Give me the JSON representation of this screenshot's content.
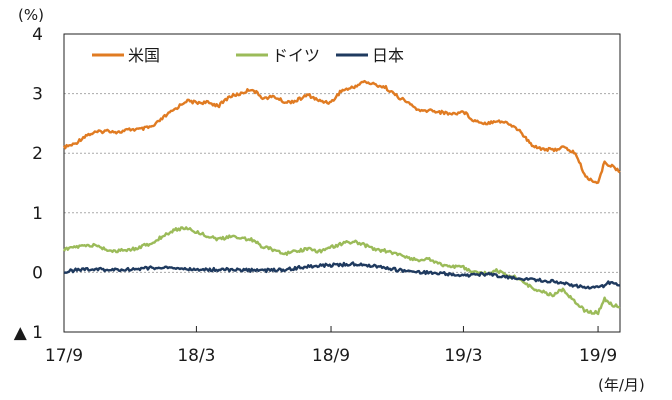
{
  "chart_data": {
    "type": "line",
    "title": "",
    "xlabel": "",
    "ylabel": "",
    "y_unit": "(%)",
    "x_unit": "(年/月)",
    "ylim": [
      -1,
      4
    ],
    "xlim": [
      "2017-09",
      "2019-10"
    ],
    "yticks": [
      {
        "value": 4,
        "label": "4"
      },
      {
        "value": 3,
        "label": "3"
      },
      {
        "value": 2,
        "label": "2"
      },
      {
        "value": 1,
        "label": "1"
      },
      {
        "value": 0,
        "label": "0"
      },
      {
        "value": -1,
        "label": "▲ 1"
      }
    ],
    "xticks": [
      {
        "value": "2017-09",
        "label": "17/9"
      },
      {
        "value": "2018-03",
        "label": "18/3"
      },
      {
        "value": "2018-09",
        "label": "18/9"
      },
      {
        "value": "2019-03",
        "label": "19/3"
      },
      {
        "value": "2019-09",
        "label": "19/9"
      }
    ],
    "grid": "horizontal dotted",
    "legend_position": "top-left",
    "series": [
      {
        "name": "米国",
        "color": "#E07B22",
        "points": [
          [
            "2017-09-01",
            2.1
          ],
          [
            "2017-09-15",
            2.15
          ],
          [
            "2017-10-01",
            2.3
          ],
          [
            "2017-10-15",
            2.35
          ],
          [
            "2017-11-01",
            2.38
          ],
          [
            "2017-11-15",
            2.35
          ],
          [
            "2017-12-01",
            2.4
          ],
          [
            "2017-12-15",
            2.4
          ],
          [
            "2018-01-01",
            2.45
          ],
          [
            "2018-01-15",
            2.6
          ],
          [
            "2018-02-01",
            2.75
          ],
          [
            "2018-02-15",
            2.88
          ],
          [
            "2018-03-01",
            2.85
          ],
          [
            "2018-03-15",
            2.85
          ],
          [
            "2018-04-01",
            2.8
          ],
          [
            "2018-04-15",
            2.95
          ],
          [
            "2018-05-01",
            3.0
          ],
          [
            "2018-05-15",
            3.08
          ],
          [
            "2018-06-01",
            2.92
          ],
          [
            "2018-06-15",
            2.95
          ],
          [
            "2018-07-01",
            2.85
          ],
          [
            "2018-07-15",
            2.88
          ],
          [
            "2018-08-01",
            2.98
          ],
          [
            "2018-08-15",
            2.88
          ],
          [
            "2018-09-01",
            2.85
          ],
          [
            "2018-09-15",
            3.05
          ],
          [
            "2018-10-01",
            3.1
          ],
          [
            "2018-10-15",
            3.2
          ],
          [
            "2018-11-01",
            3.15
          ],
          [
            "2018-11-15",
            3.1
          ],
          [
            "2018-12-01",
            2.95
          ],
          [
            "2018-12-15",
            2.85
          ],
          [
            "2019-01-01",
            2.7
          ],
          [
            "2019-01-15",
            2.72
          ],
          [
            "2019-02-01",
            2.68
          ],
          [
            "2019-02-15",
            2.66
          ],
          [
            "2019-03-01",
            2.7
          ],
          [
            "2019-03-15",
            2.55
          ],
          [
            "2019-04-01",
            2.5
          ],
          [
            "2019-04-15",
            2.55
          ],
          [
            "2019-05-01",
            2.5
          ],
          [
            "2019-05-15",
            2.4
          ],
          [
            "2019-06-01",
            2.15
          ],
          [
            "2019-06-15",
            2.08
          ],
          [
            "2019-07-01",
            2.05
          ],
          [
            "2019-07-15",
            2.1
          ],
          [
            "2019-08-01",
            2.0
          ],
          [
            "2019-08-15",
            1.6
          ],
          [
            "2019-09-01",
            1.5
          ],
          [
            "2019-09-10",
            1.85
          ],
          [
            "2019-09-20",
            1.78
          ],
          [
            "2019-10-01",
            1.68
          ]
        ]
      },
      {
        "name": "ドイツ",
        "color": "#9BBB59",
        "points": [
          [
            "2017-09-01",
            0.38
          ],
          [
            "2017-09-15",
            0.42
          ],
          [
            "2017-10-01",
            0.45
          ],
          [
            "2017-10-15",
            0.45
          ],
          [
            "2017-11-01",
            0.37
          ],
          [
            "2017-11-15",
            0.36
          ],
          [
            "2017-12-01",
            0.38
          ],
          [
            "2017-12-15",
            0.43
          ],
          [
            "2018-01-01",
            0.5
          ],
          [
            "2018-01-15",
            0.62
          ],
          [
            "2018-02-01",
            0.72
          ],
          [
            "2018-02-15",
            0.75
          ],
          [
            "2018-03-01",
            0.68
          ],
          [
            "2018-03-15",
            0.62
          ],
          [
            "2018-04-01",
            0.55
          ],
          [
            "2018-04-15",
            0.6
          ],
          [
            "2018-05-01",
            0.58
          ],
          [
            "2018-05-15",
            0.55
          ],
          [
            "2018-06-01",
            0.42
          ],
          [
            "2018-06-15",
            0.38
          ],
          [
            "2018-07-01",
            0.32
          ],
          [
            "2018-07-15",
            0.35
          ],
          [
            "2018-08-01",
            0.4
          ],
          [
            "2018-08-15",
            0.35
          ],
          [
            "2018-09-01",
            0.42
          ],
          [
            "2018-09-15",
            0.48
          ],
          [
            "2018-10-01",
            0.52
          ],
          [
            "2018-10-15",
            0.47
          ],
          [
            "2018-11-01",
            0.38
          ],
          [
            "2018-11-15",
            0.36
          ],
          [
            "2018-12-01",
            0.3
          ],
          [
            "2018-12-15",
            0.25
          ],
          [
            "2019-01-01",
            0.2
          ],
          [
            "2019-01-15",
            0.22
          ],
          [
            "2019-02-01",
            0.12
          ],
          [
            "2019-02-15",
            0.1
          ],
          [
            "2019-03-01",
            0.08
          ],
          [
            "2019-03-15",
            0.0
          ],
          [
            "2019-04-01",
            -0.02
          ],
          [
            "2019-04-15",
            0.03
          ],
          [
            "2019-05-01",
            -0.05
          ],
          [
            "2019-05-15",
            -0.1
          ],
          [
            "2019-06-01",
            -0.25
          ],
          [
            "2019-06-15",
            -0.32
          ],
          [
            "2019-07-01",
            -0.38
          ],
          [
            "2019-07-15",
            -0.28
          ],
          [
            "2019-08-01",
            -0.5
          ],
          [
            "2019-08-15",
            -0.65
          ],
          [
            "2019-09-01",
            -0.68
          ],
          [
            "2019-09-10",
            -0.45
          ],
          [
            "2019-09-20",
            -0.55
          ],
          [
            "2019-10-01",
            -0.58
          ]
        ]
      },
      {
        "name": "日本",
        "color": "#1F3A5F",
        "points": [
          [
            "2017-09-01",
            0.01
          ],
          [
            "2017-10-01",
            0.06
          ],
          [
            "2017-11-01",
            0.04
          ],
          [
            "2017-12-01",
            0.05
          ],
          [
            "2018-01-01",
            0.08
          ],
          [
            "2018-02-01",
            0.07
          ],
          [
            "2018-03-01",
            0.04
          ],
          [
            "2018-04-01",
            0.05
          ],
          [
            "2018-05-01",
            0.04
          ],
          [
            "2018-06-01",
            0.03
          ],
          [
            "2018-07-01",
            0.05
          ],
          [
            "2018-08-01",
            0.1
          ],
          [
            "2018-09-01",
            0.12
          ],
          [
            "2018-10-01",
            0.14
          ],
          [
            "2018-11-01",
            0.11
          ],
          [
            "2018-12-01",
            0.04
          ],
          [
            "2019-01-01",
            0.0
          ],
          [
            "2019-02-01",
            -0.02
          ],
          [
            "2019-03-01",
            -0.05
          ],
          [
            "2019-04-01",
            -0.03
          ],
          [
            "2019-05-01",
            -0.08
          ],
          [
            "2019-06-01",
            -0.12
          ],
          [
            "2019-07-01",
            -0.15
          ],
          [
            "2019-08-01",
            -0.22
          ],
          [
            "2019-08-20",
            -0.27
          ],
          [
            "2019-09-05",
            -0.25
          ],
          [
            "2019-09-15",
            -0.16
          ],
          [
            "2019-10-01",
            -0.22
          ]
        ]
      }
    ]
  }
}
